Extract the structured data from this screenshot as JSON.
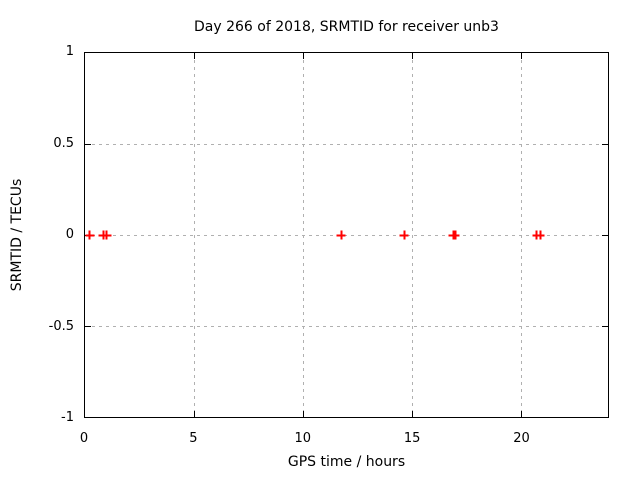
{
  "colors": {
    "background": "#ffffff",
    "axis": "#000000",
    "grid": "#b0b0b0",
    "marker": "#ff0000"
  },
  "chart_data": {
    "type": "scatter",
    "title": "Day 266 of 2018, SRMTID for receiver unb3",
    "xlabel": "GPS time / hours",
    "ylabel": "SRMTID / TECUs",
    "xlim": [
      0,
      24
    ],
    "ylim": [
      -1,
      1
    ],
    "xticks": [
      0,
      5,
      10,
      15,
      20
    ],
    "xtick_labels": [
      "0",
      "5",
      "10",
      "15",
      "20"
    ],
    "yticks": [
      1,
      0.5,
      0,
      -0.5,
      -1
    ],
    "ytick_labels": [
      "1",
      "0.5",
      "0",
      "-0.5",
      "-1"
    ],
    "grid": true,
    "grid_style": "dashed",
    "legend": false,
    "marker_style": "plus",
    "series": [
      {
        "name": "SRMTID",
        "color": "#ff0000",
        "x": [
          0.22,
          0.83,
          1.0,
          11.76,
          14.64,
          16.9,
          17.0,
          20.72,
          20.9
        ],
        "y": [
          0,
          0,
          0,
          0,
          0,
          0,
          0,
          0,
          0
        ]
      }
    ]
  }
}
